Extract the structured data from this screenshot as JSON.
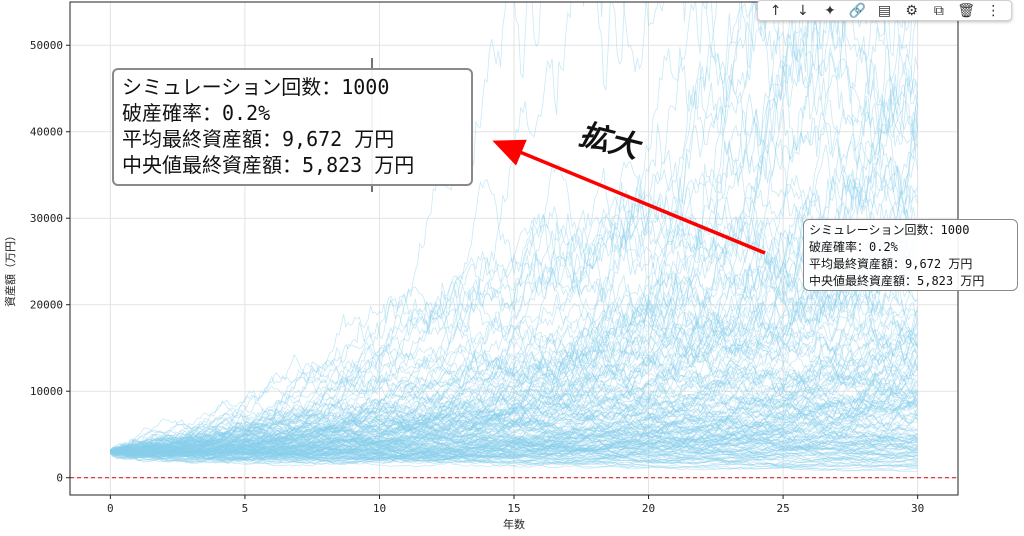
{
  "toolbar": {
    "buttons": [
      {
        "icon": "arrow-up-icon",
        "glyph": "↑"
      },
      {
        "icon": "arrow-down-icon",
        "glyph": "↓"
      },
      {
        "icon": "sparkle-icon",
        "glyph": "✦"
      },
      {
        "icon": "link-icon",
        "glyph": "🔗"
      },
      {
        "icon": "comment-icon",
        "glyph": "▤"
      },
      {
        "icon": "gear-icon",
        "glyph": "⚙"
      },
      {
        "icon": "mirror-icon",
        "glyph": "⧉"
      },
      {
        "icon": "trash-icon",
        "glyph": "🗑"
      },
      {
        "icon": "more-icon",
        "glyph": "⋮"
      }
    ]
  },
  "annotation": {
    "lines": [
      "シミュレーション回数：1000",
      "破産確率：0.2%",
      "平均最終資産額：9,672 万円",
      "中央値最終資産額：5,823 万円"
    ],
    "zoom_label": "拡大"
  },
  "chart_data": {
    "type": "line",
    "xlabel": "年数",
    "ylabel": "資産額（万円）",
    "xlim": [
      -1.5,
      31.5
    ],
    "ylim": [
      -2000,
      55000
    ],
    "xticks": [
      0,
      5,
      10,
      15,
      20,
      25,
      30
    ],
    "yticks": [
      0,
      10000,
      20000,
      30000,
      40000,
      50000
    ],
    "grid": true,
    "series_color": "#87ceeb",
    "baseline": {
      "y": 0,
      "color": "#d62728",
      "style": "dashed"
    },
    "simulations": 1000,
    "start_value": 3000,
    "percentile_bands": {
      "years": [
        0,
        5,
        10,
        15,
        20,
        25,
        30
      ],
      "p10": [
        2900,
        2400,
        2100,
        1900,
        1800,
        1700,
        1600
      ],
      "p50": [
        3000,
        3400,
        3800,
        4300,
        4800,
        5300,
        5823
      ],
      "p90": [
        3100,
        4800,
        6800,
        9500,
        13000,
        17000,
        22000
      ],
      "max": [
        3300,
        8000,
        14000,
        21000,
        32000,
        43000,
        52000
      ]
    }
  }
}
